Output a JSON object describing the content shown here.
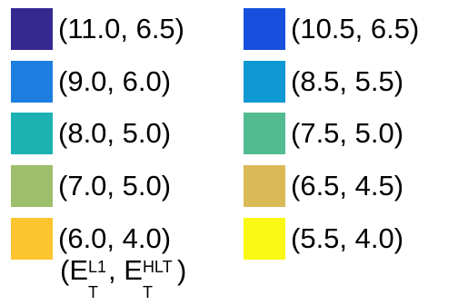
{
  "chart_data": {
    "type": "legend",
    "entries": [
      {
        "label": "(11.0, 6.5)",
        "color": "#35288f"
      },
      {
        "label": "(10.5, 6.5)",
        "color": "#1650dc"
      },
      {
        "label": "(9.0, 6.0)",
        "color": "#1e7ee0"
      },
      {
        "label": "(8.5, 5.5)",
        "color": "#0f99d3"
      },
      {
        "label": "(8.0, 5.0)",
        "color": "#1cb2b2"
      },
      {
        "label": "(7.5, 5.0)",
        "color": "#52bb8f"
      },
      {
        "label": "(7.0, 5.0)",
        "color": "#9dbe6b"
      },
      {
        "label": "(6.5, 4.5)",
        "color": "#d9ba56"
      },
      {
        "label": "(6.0, 4.0)",
        "color": "#fcc530"
      },
      {
        "label": "(5.5, 4.0)",
        "color": "#f9f914"
      }
    ],
    "legend_title": {
      "open": "(",
      "sym1": "E",
      "sup1": "L1",
      "sub1": "T",
      "sep": ", ",
      "sym2": "E",
      "sup2": "HLT",
      "sub2": "T",
      "close": ")"
    }
  }
}
